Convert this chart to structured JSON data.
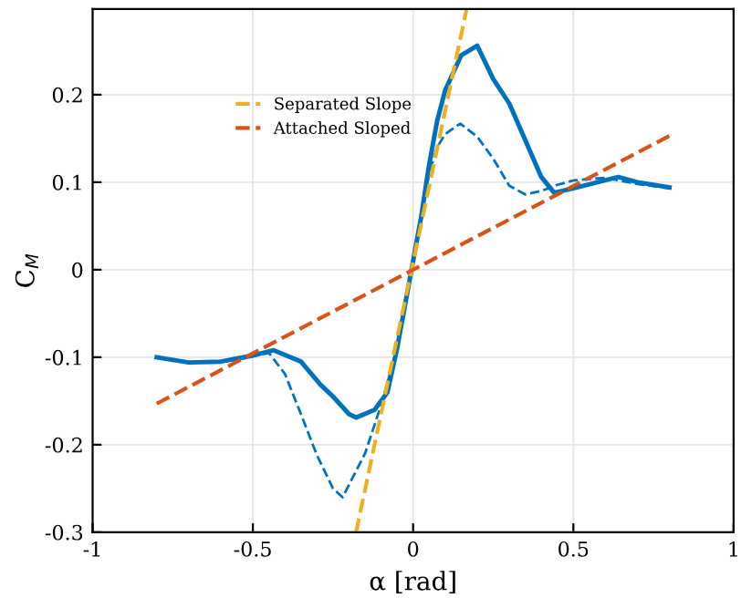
{
  "chart_data": {
    "type": "line",
    "xlabel": "α [rad]",
    "ylabel": "C$_{M}$",
    "xlim": [
      -1,
      1
    ],
    "ylim": [
      -0.3,
      0.298
    ],
    "xticks": [
      -1,
      -0.5,
      0,
      0.5,
      1
    ],
    "yticks": [
      -0.3,
      -0.2,
      -0.1,
      0,
      0.1,
      0.2
    ],
    "grid": true,
    "legend": "top left",
    "marker": "none",
    "series": [
      {
        "color": "#0072bd",
        "line_style": "dashed",
        "x": [
          -0.8,
          -0.7,
          -0.6,
          -0.55,
          -0.45,
          -0.4,
          -0.35,
          -0.3,
          -0.25,
          -0.22,
          -0.15,
          -0.1,
          -0.05,
          -0.025,
          0,
          0.025,
          0.05,
          0.075,
          0.1,
          0.147,
          0.2,
          0.25,
          0.3,
          0.35,
          0.4,
          0.45,
          0.5,
          0.6,
          0.7,
          0.8
        ],
        "values": [
          -0.1,
          -0.106,
          -0.105,
          -0.103,
          -0.095,
          -0.119,
          -0.165,
          -0.212,
          -0.25,
          -0.26,
          -0.21,
          -0.155,
          -0.09,
          -0.04,
          0.01,
          0.06,
          0.11,
          0.14,
          0.155,
          0.167,
          0.152,
          0.127,
          0.096,
          0.086,
          0.09,
          0.097,
          0.102,
          0.105,
          0.098,
          0.093
        ]
      },
      {
        "color": "#0072bd",
        "line_style": "solid",
        "x": [
          -0.8,
          -0.7,
          -0.6,
          -0.5,
          -0.435,
          -0.35,
          -0.29,
          -0.25,
          -0.2,
          -0.178,
          -0.12,
          -0.08,
          -0.05,
          -0.025,
          0,
          0.025,
          0.05,
          0.075,
          0.1,
          0.15,
          0.2,
          0.25,
          0.3,
          0.35,
          0.4,
          0.44,
          0.5,
          0.64,
          0.7,
          0.8
        ],
        "values": [
          -0.1,
          -0.106,
          -0.105,
          -0.098,
          -0.092,
          -0.105,
          -0.131,
          -0.145,
          -0.165,
          -0.169,
          -0.16,
          -0.14,
          -0.09,
          -0.04,
          0.01,
          0.06,
          0.12,
          0.17,
          0.205,
          0.245,
          0.256,
          0.218,
          0.19,
          0.148,
          0.106,
          0.088,
          0.093,
          0.106,
          0.1,
          0.094
        ]
      },
      {
        "name": "Separated Slope",
        "color": "#edb120",
        "line_style": "dashed",
        "x": [
          -0.178,
          0.167
        ],
        "values": [
          -0.3,
          0.298
        ]
      },
      {
        "name": "Attached Sloped",
        "color": "#d95319",
        "line_style": "dashed",
        "x": [
          -0.8,
          0.8
        ],
        "values": [
          -0.153,
          0.153
        ]
      }
    ]
  }
}
